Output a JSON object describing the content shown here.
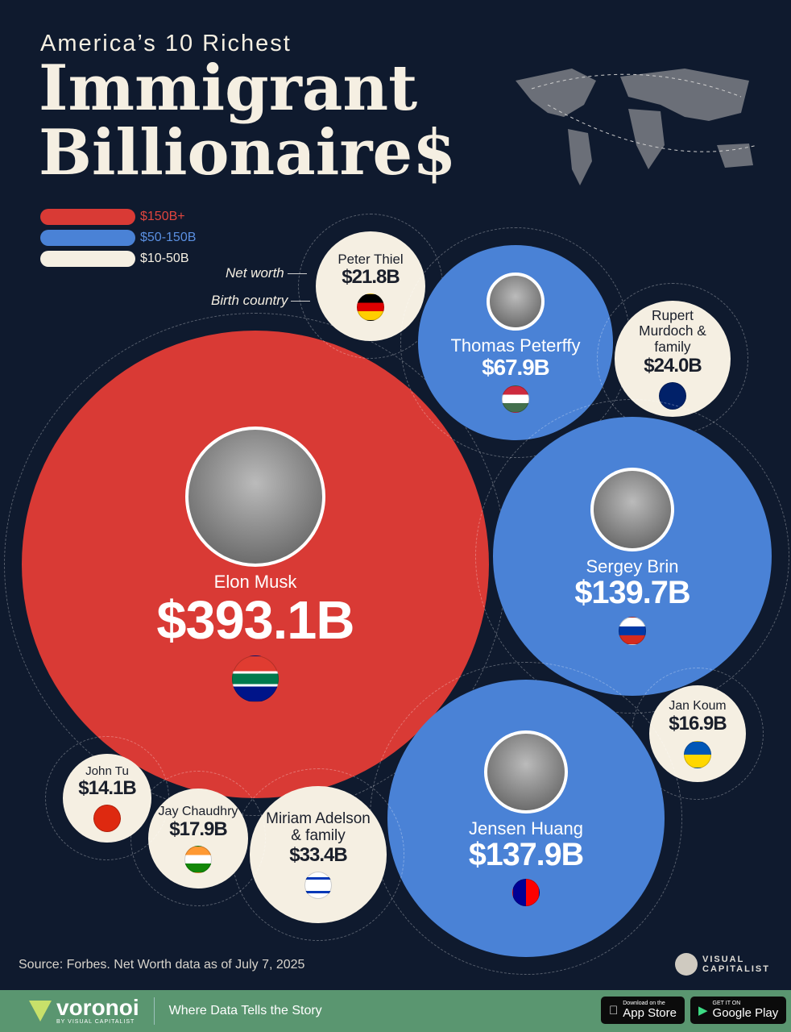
{
  "header": {
    "subtitle": "America’s 10 Richest",
    "title_line1": "Immigrant",
    "title_line2": "Billionaire$"
  },
  "legend": [
    {
      "label": "$150B+",
      "color": "#d93a35"
    },
    {
      "label": "$50-150B",
      "color": "#4a82d6"
    },
    {
      "label": "$10-50B",
      "color": "#f5efe2"
    }
  ],
  "annotations": {
    "net_worth": "Net worth",
    "birth_country": "Birth country"
  },
  "chart_data": {
    "type": "bubble",
    "title": "America’s 10 Richest Immigrant Billionaires",
    "unit": "USD billions",
    "items": [
      {
        "name": "Elon Musk",
        "label": "$393.1B",
        "value": 393.1,
        "country": "South Africa",
        "tier": "$150B+",
        "has_photo": true
      },
      {
        "name": "Peter Thiel",
        "label": "$21.8B",
        "value": 21.8,
        "country": "Germany",
        "tier": "$10-50B",
        "has_photo": false
      },
      {
        "name": "Thomas Peterffy",
        "label": "$67.9B",
        "value": 67.9,
        "country": "Hungary",
        "tier": "$50-150B",
        "has_photo": true
      },
      {
        "name": "Rupert Murdoch & family",
        "label": "$24.0B",
        "value": 24.0,
        "country": "Australia",
        "tier": "$10-50B",
        "has_photo": false
      },
      {
        "name": "Sergey Brin",
        "label": "$139.7B",
        "value": 139.7,
        "country": "Russia",
        "tier": "$50-150B",
        "has_photo": true
      },
      {
        "name": "Jan Koum",
        "label": "$16.9B",
        "value": 16.9,
        "country": "Ukraine",
        "tier": "$10-50B",
        "has_photo": false
      },
      {
        "name": "Jensen Huang",
        "label": "$137.9B",
        "value": 137.9,
        "country": "Taiwan",
        "tier": "$50-150B",
        "has_photo": true
      },
      {
        "name": "Miriam Adelson & family",
        "label": "$33.4B",
        "value": 33.4,
        "country": "Israel",
        "tier": "$10-50B",
        "has_photo": false
      },
      {
        "name": "Jay Chaudhry",
        "label": "$17.9B",
        "value": 17.9,
        "country": "India",
        "tier": "$10-50B",
        "has_photo": false
      },
      {
        "name": "John Tu",
        "label": "$14.1B",
        "value": 14.1,
        "country": "China",
        "tier": "$10-50B",
        "has_photo": false
      }
    ]
  },
  "source": "Source: Forbes. Net Worth data as of July 7, 2025",
  "brand": {
    "vc": "VISUAL CAPITALIST",
    "voronoi": "voronoi",
    "voronoi_by": "BY VISUAL CAPITALIST",
    "tagline": "Where Data Tells the Story"
  },
  "stores": {
    "apple_small": "Download on the",
    "apple": "App Store",
    "google_small": "GET IT ON",
    "google": "Google Play"
  }
}
